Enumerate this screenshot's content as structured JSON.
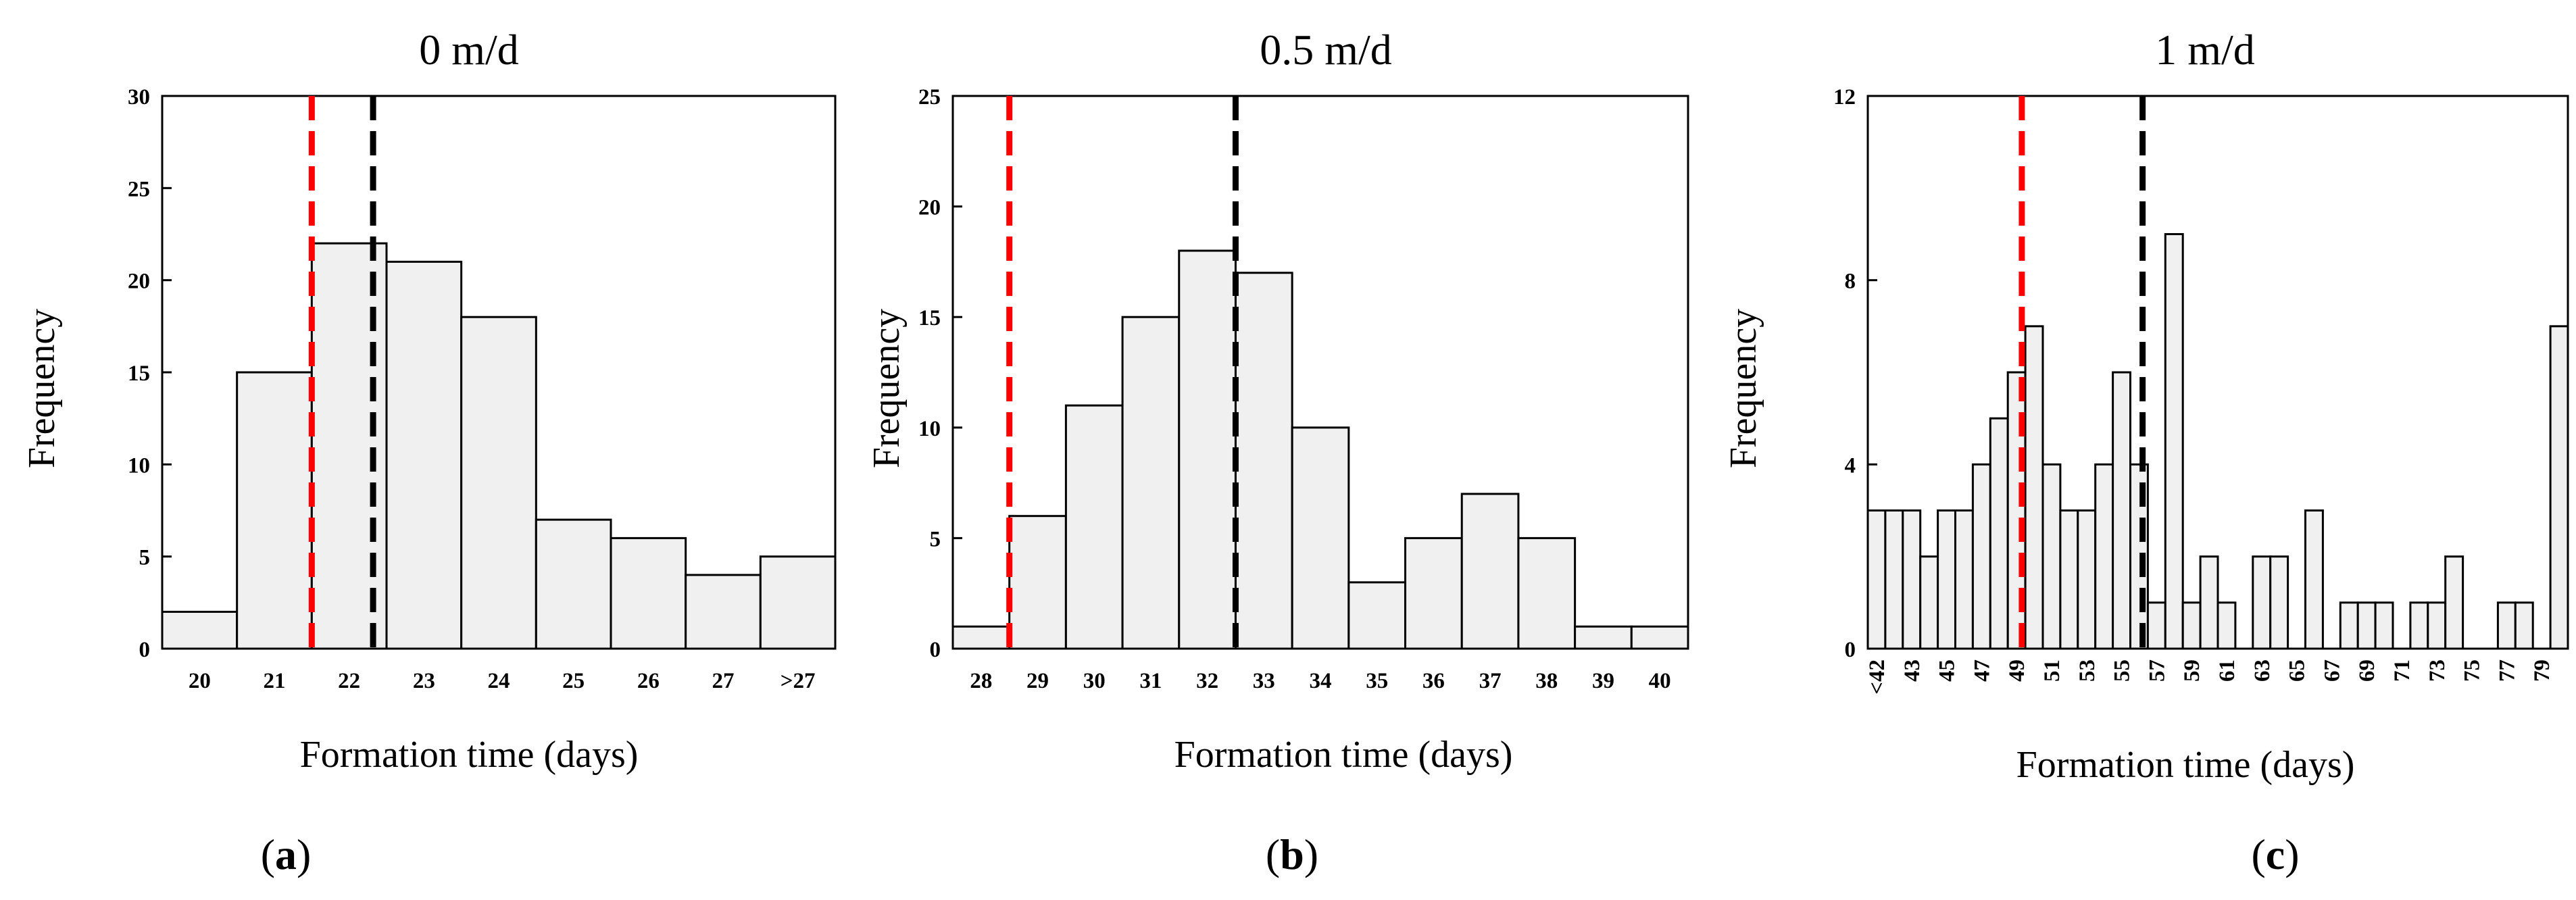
{
  "chart_data": [
    {
      "id": "a",
      "type": "bar",
      "title": "0 m/d",
      "xlabel": "Formation time (days)",
      "ylabel": "Frequency",
      "panel_label": "a",
      "categories": [
        "20",
        "21",
        "22",
        "23",
        "24",
        "25",
        "26",
        "27",
        ">27"
      ],
      "values": [
        2,
        15,
        22,
        21,
        18,
        7,
        6,
        4,
        5
      ],
      "ylim": [
        0,
        30
      ],
      "yticks": [
        0,
        5,
        10,
        15,
        20,
        25,
        30
      ],
      "reference_lines": [
        {
          "color": "#ff0000",
          "style": "dashed",
          "x": 2.0
        },
        {
          "color": "#000000",
          "style": "dashed",
          "x": 2.82
        }
      ]
    },
    {
      "id": "b",
      "type": "bar",
      "title": "0.5 m/d",
      "xlabel": "Formation time (days)",
      "ylabel": "Frequency",
      "panel_label": "b",
      "categories": [
        "28",
        "29",
        "30",
        "31",
        "32",
        "33",
        "34",
        "35",
        "36",
        "37",
        "38",
        "39",
        "40"
      ],
      "values": [
        1,
        6,
        11,
        15,
        18,
        17,
        10,
        3,
        5,
        7,
        5,
        1,
        1
      ],
      "ylim": [
        0,
        25
      ],
      "yticks": [
        0,
        5,
        10,
        15,
        20,
        25
      ],
      "reference_lines": [
        {
          "color": "#ff0000",
          "style": "dashed",
          "x": 1.0
        },
        {
          "color": "#000000",
          "style": "dashed",
          "x": 5.0
        }
      ]
    },
    {
      "id": "c",
      "type": "bar",
      "title": "1 m/d",
      "xlabel": "Formation time (days)",
      "ylabel": "Frequency",
      "panel_label": "c",
      "categories": [
        "<42",
        "",
        "43",
        "",
        "45",
        "",
        "47",
        "",
        "49",
        "",
        "51",
        "",
        "53",
        "",
        "55",
        "",
        "57",
        "",
        "59",
        "",
        "61",
        "",
        "63",
        "",
        "65",
        "",
        "67",
        "",
        "69",
        "",
        "71",
        "",
        "73",
        "",
        "75",
        "",
        "77",
        "",
        "79",
        ""
      ],
      "values": [
        3,
        3,
        3,
        2,
        3,
        3,
        4,
        5,
        6,
        7,
        4,
        3,
        3,
        4,
        6,
        4,
        1,
        9,
        1,
        2,
        1,
        0,
        2,
        2,
        0,
        3,
        0,
        1,
        1,
        1,
        0,
        1,
        1,
        2,
        0,
        0,
        1,
        1,
        0,
        7
      ],
      "ylim": [
        0,
        12
      ],
      "yticks": [
        0,
        4,
        8,
        12
      ],
      "reference_lines": [
        {
          "color": "#ff0000",
          "style": "dashed",
          "x": 8.8
        },
        {
          "color": "#000000",
          "style": "dashed",
          "x": 15.7
        }
      ]
    }
  ]
}
